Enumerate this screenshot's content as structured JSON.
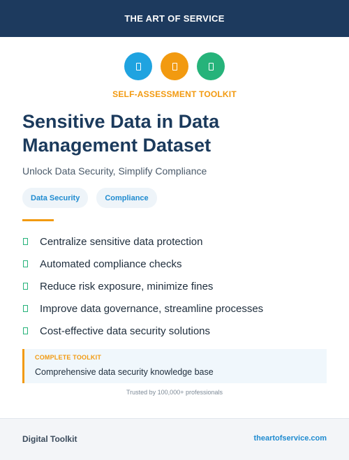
{
  "header": {
    "brand": "THE ART OF SERVICE"
  },
  "icons": [
    {
      "name": "document-icon",
      "color": "#1fa3e0"
    },
    {
      "name": "document-icon",
      "color": "#f29a10"
    },
    {
      "name": "document-icon",
      "color": "#26b37a"
    }
  ],
  "kicker": "SELF-ASSESSMENT TOOLKIT",
  "title": "Sensitive Data in Data Management Dataset",
  "subtitle": "Unlock Data Security, Simplify Compliance",
  "tags": [
    "Data Security",
    "Compliance"
  ],
  "benefits": [
    "Centralize sensitive data protection",
    "Automated compliance checks",
    "Reduce risk exposure, minimize fines",
    "Improve data governance, streamline processes",
    "Cost-effective data security solutions"
  ],
  "callout": {
    "label": "COMPLETE TOOLKIT",
    "text": "Comprehensive data security knowledge base"
  },
  "trusted": "Trusted by 100,000+ professionals",
  "footer": {
    "left": "Digital Toolkit",
    "right": "theartofservice.com"
  },
  "colors": {
    "navy": "#1d3a5e",
    "accent": "#f29a10",
    "blue": "#1fa3e0",
    "green": "#26b37a"
  }
}
